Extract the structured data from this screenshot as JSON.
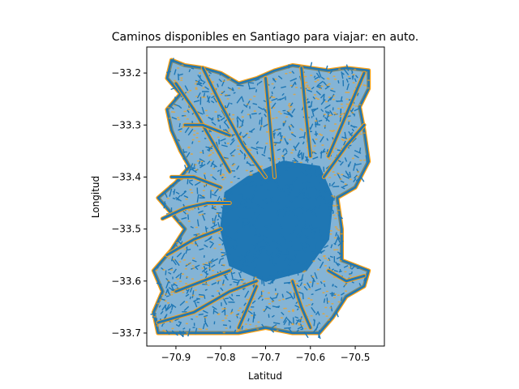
{
  "chart_data": {
    "type": "line",
    "title": "Caminos disponibles en Santiago para viajar: en auto.",
    "xlabel": "Latitud",
    "ylabel": "Longitud",
    "xlim": [
      -70.965,
      -70.435
    ],
    "ylim": [
      -33.725,
      -33.15
    ],
    "xticks": [
      -70.9,
      -70.8,
      -70.7,
      -70.6,
      -70.5
    ],
    "xtick_labels": [
      "−70.9",
      "−70.8",
      "−70.7",
      "−70.6",
      "−70.5"
    ],
    "yticks": [
      -33.2,
      -33.3,
      -33.4,
      -33.5,
      -33.6,
      -33.7
    ],
    "ytick_labels": [
      "−33.2",
      "−33.3",
      "−33.4",
      "−33.5",
      "−33.6",
      "−33.7"
    ],
    "grid": false,
    "legend": false,
    "colors": {
      "edges": "#1f77b4",
      "nodes": "#ff9f0e"
    },
    "outline": [
      [
        -70.91,
        -33.175
      ],
      [
        -70.88,
        -33.185
      ],
      [
        -70.84,
        -33.19
      ],
      [
        -70.8,
        -33.2
      ],
      [
        -70.76,
        -33.22
      ],
      [
        -70.72,
        -33.21
      ],
      [
        -70.68,
        -33.195
      ],
      [
        -70.64,
        -33.185
      ],
      [
        -70.6,
        -33.19
      ],
      [
        -70.56,
        -33.195
      ],
      [
        -70.52,
        -33.19
      ],
      [
        -70.47,
        -33.195
      ],
      [
        -70.47,
        -33.23
      ],
      [
        -70.49,
        -33.265
      ],
      [
        -70.48,
        -33.31
      ],
      [
        -70.47,
        -33.37
      ],
      [
        -70.5,
        -33.42
      ],
      [
        -70.54,
        -33.44
      ],
      [
        -70.53,
        -33.5
      ],
      [
        -70.53,
        -33.56
      ],
      [
        -70.47,
        -33.58
      ],
      [
        -70.48,
        -33.61
      ],
      [
        -70.52,
        -33.63
      ],
      [
        -70.55,
        -33.67
      ],
      [
        -70.58,
        -33.7
      ],
      [
        -70.64,
        -33.7
      ],
      [
        -70.7,
        -33.69
      ],
      [
        -70.76,
        -33.7
      ],
      [
        -70.82,
        -33.7
      ],
      [
        -70.88,
        -33.7
      ],
      [
        -70.94,
        -33.7
      ],
      [
        -70.95,
        -33.66
      ],
      [
        -70.93,
        -33.62
      ],
      [
        -70.95,
        -33.58
      ],
      [
        -70.91,
        -33.54
      ],
      [
        -70.88,
        -33.5
      ],
      [
        -70.91,
        -33.47
      ],
      [
        -70.94,
        -33.44
      ],
      [
        -70.9,
        -33.41
      ],
      [
        -70.87,
        -33.38
      ],
      [
        -70.89,
        -33.35
      ],
      [
        -70.91,
        -33.31
      ],
      [
        -70.92,
        -33.27
      ],
      [
        -70.89,
        -33.24
      ],
      [
        -70.92,
        -33.21
      ],
      [
        -70.91,
        -33.175
      ]
    ],
    "core": [
      [
        -70.74,
        -33.4
      ],
      [
        -70.66,
        -33.37
      ],
      [
        -70.58,
        -33.38
      ],
      [
        -70.55,
        -33.44
      ],
      [
        -70.56,
        -33.52
      ],
      [
        -70.61,
        -33.58
      ],
      [
        -70.7,
        -33.6
      ],
      [
        -70.78,
        -33.57
      ],
      [
        -70.8,
        -33.5
      ],
      [
        -70.79,
        -33.43
      ],
      [
        -70.74,
        -33.4
      ]
    ],
    "roads": [
      [
        [
          -70.93,
          -33.48
        ],
        [
          -70.88,
          -33.46
        ],
        [
          -70.83,
          -33.45
        ],
        [
          -70.78,
          -33.45
        ]
      ],
      [
        [
          -70.92,
          -33.55
        ],
        [
          -70.86,
          -33.52
        ],
        [
          -70.8,
          -33.5
        ]
      ],
      [
        [
          -70.9,
          -33.22
        ],
        [
          -70.86,
          -33.27
        ],
        [
          -70.82,
          -33.33
        ],
        [
          -70.78,
          -33.39
        ]
      ],
      [
        [
          -70.84,
          -33.19
        ],
        [
          -70.8,
          -33.26
        ],
        [
          -70.75,
          -33.34
        ],
        [
          -70.7,
          -33.4
        ]
      ],
      [
        [
          -70.7,
          -33.21
        ],
        [
          -70.69,
          -33.3
        ],
        [
          -70.68,
          -33.4
        ]
      ],
      [
        [
          -70.62,
          -33.19
        ],
        [
          -70.61,
          -33.28
        ],
        [
          -70.6,
          -33.36
        ]
      ],
      [
        [
          -70.48,
          -33.2
        ],
        [
          -70.52,
          -33.28
        ],
        [
          -70.56,
          -33.36
        ]
      ],
      [
        [
          -70.48,
          -33.3
        ],
        [
          -70.52,
          -33.34
        ],
        [
          -70.57,
          -33.4
        ]
      ],
      [
        [
          -70.48,
          -33.59
        ],
        [
          -70.52,
          -33.6
        ],
        [
          -70.56,
          -33.58
        ]
      ],
      [
        [
          -70.94,
          -33.68
        ],
        [
          -70.86,
          -33.66
        ],
        [
          -70.78,
          -33.62
        ],
        [
          -70.72,
          -33.6
        ]
      ],
      [
        [
          -70.9,
          -33.62
        ],
        [
          -70.84,
          -33.6
        ],
        [
          -70.78,
          -33.58
        ]
      ],
      [
        [
          -70.6,
          -33.69
        ],
        [
          -70.62,
          -33.65
        ],
        [
          -70.64,
          -33.6
        ]
      ],
      [
        [
          -70.76,
          -33.69
        ],
        [
          -70.74,
          -33.65
        ],
        [
          -70.72,
          -33.61
        ]
      ],
      [
        [
          -70.88,
          -33.3
        ],
        [
          -70.84,
          -33.3
        ],
        [
          -70.78,
          -33.32
        ]
      ],
      [
        [
          -70.91,
          -33.4
        ],
        [
          -70.86,
          -33.4
        ],
        [
          -70.8,
          -33.42
        ]
      ]
    ]
  }
}
